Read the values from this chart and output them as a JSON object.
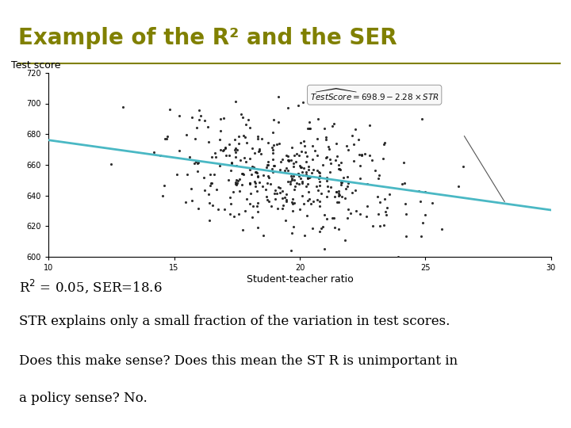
{
  "title": "Example of the R² and the SER",
  "title_color": "#808000",
  "sidebar_color": "#808000",
  "background_color": "#ffffff",
  "scatter_seed": 42,
  "n_points": 420,
  "str_mean": 19.5,
  "str_std": 2.5,
  "str_min": 12.5,
  "str_max": 26.5,
  "intercept": 698.9,
  "slope": -2.28,
  "noise_std": 18.6,
  "xlabel": "Student-teacher ratio",
  "ylabel": "Test score",
  "xlim": [
    10,
    30
  ],
  "ylim": [
    600,
    720
  ],
  "xticks": [
    10,
    15,
    20,
    25,
    30
  ],
  "yticks": [
    600,
    620,
    640,
    660,
    680,
    700,
    720
  ],
  "line_color": "#4ab8c4",
  "scatter_color": "#1a1a1a",
  "body_line1": "R² = 0.05, SER=18.6",
  "body_line2": "STR explains only a small fraction of the variation in test scores.",
  "body_line3": "Does this make sense? Does this mean the ST R is unimportant in",
  "body_line4": "a policy sense? No.",
  "body_color": "#000000",
  "body_fontsize": 12,
  "title_fontsize": 20,
  "axis_label_fontsize": 8,
  "tick_fontsize": 7
}
